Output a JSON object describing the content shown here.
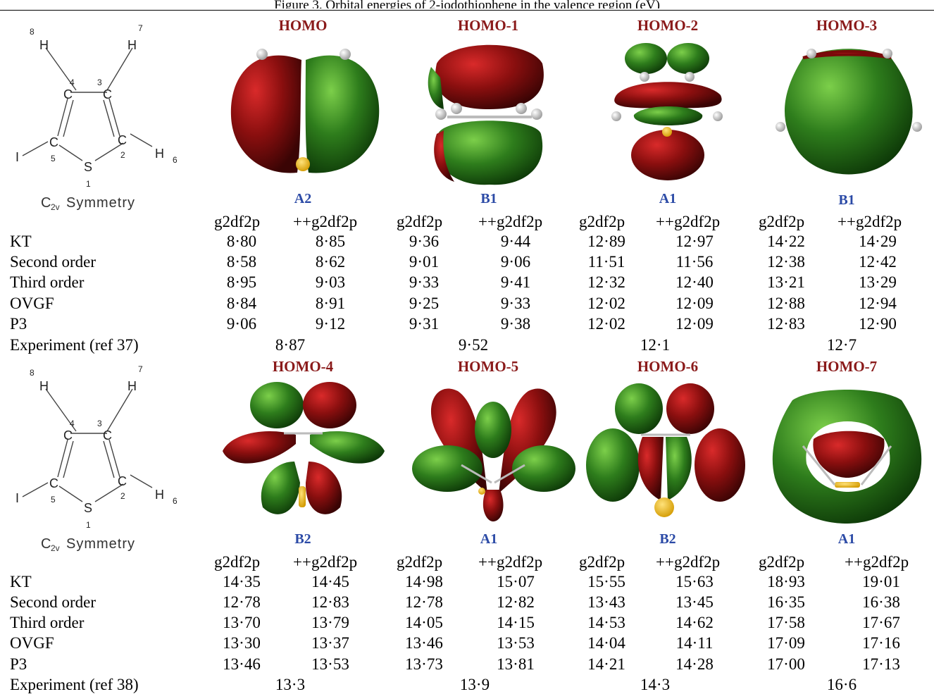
{
  "caption": "Figure 3. Orbital energies of 2-iodothiophene in the valence region (eV)",
  "molecule": {
    "atoms": {
      "H8": "H",
      "H7": "H",
      "C4": "C",
      "C3": "C",
      "C5": "C",
      "C2": "C",
      "I": "I",
      "S": "S",
      "H6": "H"
    },
    "numbers": {
      "n8": "8",
      "n7": "7",
      "n4": "4",
      "n3": "3",
      "n5": "5",
      "n2": "2",
      "n1": "1",
      "n6": "6"
    },
    "symmetry": {
      "main": "C",
      "sub": "2v",
      "rest": " Symmetry"
    }
  },
  "colors": {
    "positive_lobe": "#2e7d1c",
    "negative_lobe": "#8b0f0f",
    "title": "#8a1a1a",
    "symmetry": "#2b4aa6"
  },
  "basis": {
    "a": "g2df2p",
    "b": "++g2df2p"
  },
  "row_labels": [
    "KT",
    "Second order",
    "Third order",
    "OVGF",
    "P3"
  ],
  "panels": [
    {
      "orbitals": [
        {
          "title": "HOMO",
          "sym": "A2"
        },
        {
          "title": "HOMO-1",
          "sym": "B1"
        },
        {
          "title": "HOMO-2",
          "sym": "A1"
        },
        {
          "title": "HOMO-3",
          "sym": "B1"
        }
      ],
      "rows": [
        [
          "8·80",
          "8·85",
          "9·36",
          "9·44",
          "12·89",
          "12·97",
          "14·22",
          "14·29"
        ],
        [
          "8·58",
          "8·62",
          "9·01",
          "9·06",
          "11·51",
          "11·56",
          "12·38",
          "12·42"
        ],
        [
          "8·95",
          "9·03",
          "9·33",
          "9·41",
          "12·32",
          "12·40",
          "13·21",
          "13·29"
        ],
        [
          "8·84",
          "8·91",
          "9·25",
          "9·33",
          "12·02",
          "12·09",
          "12·88",
          "12·94"
        ],
        [
          "9·06",
          "9·12",
          "9·31",
          "9·38",
          "12·02",
          "12·09",
          "12·83",
          "12·90"
        ]
      ],
      "experiment_label": "Experiment (ref 37)",
      "experiment": [
        "8·87",
        "9·52",
        "12·1",
        "12·7"
      ]
    },
    {
      "orbitals": [
        {
          "title": "HOMO-4",
          "sym": "B2"
        },
        {
          "title": "HOMO-5",
          "sym": "A1"
        },
        {
          "title": "HOMO-6",
          "sym": "B2"
        },
        {
          "title": "HOMO-7",
          "sym": "A1"
        }
      ],
      "rows": [
        [
          "14·35",
          "14·45",
          "14·98",
          "15·07",
          "15·55",
          "15·63",
          "18·93",
          "19·01"
        ],
        [
          "12·78",
          "12·83",
          "12·78",
          "12·82",
          "13·43",
          "13·45",
          "16·35",
          "16·38"
        ],
        [
          "13·70",
          "13·79",
          "14·05",
          "14·15",
          "14·53",
          "14·62",
          "17·58",
          "17·67"
        ],
        [
          "13·30",
          "13·37",
          "13·46",
          "13·53",
          "14·04",
          "14·11",
          "17·09",
          "17·16"
        ],
        [
          "13·46",
          "13·53",
          "13·73",
          "13·81",
          "14·21",
          "14·28",
          "17·00",
          "17·13"
        ]
      ],
      "experiment_label": "Experiment (ref 38)",
      "experiment": [
        "13·3",
        "13·9",
        "14·3",
        "16·6"
      ]
    }
  ]
}
